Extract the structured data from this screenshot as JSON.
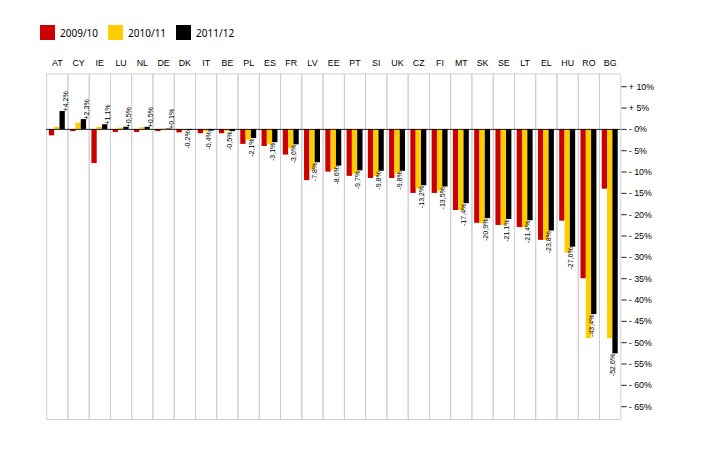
{
  "chart_data": {
    "type": "bar",
    "categories": [
      "AT",
      "CY",
      "IE",
      "LU",
      "NL",
      "DE",
      "DK",
      "IT",
      "BE",
      "PL",
      "ES",
      "FR",
      "LV",
      "EE",
      "PT",
      "SI",
      "UK",
      "CZ",
      "FI",
      "MT",
      "SK",
      "SE",
      "LT",
      "EL",
      "HU",
      "RO",
      "BG"
    ],
    "series": [
      {
        "name": "2009/10",
        "color": "#cc0000",
        "values": [
          -1.5,
          -0.5,
          -8.0,
          -0.7,
          -0.7,
          -0.5,
          -0.8,
          -1.0,
          -1.0,
          -3.5,
          -4.0,
          -6.0,
          -12.0,
          -10.0,
          -11.0,
          -11.5,
          -11.5,
          -15.0,
          -15.0,
          -19.0,
          -22.0,
          -22.5,
          -23.0,
          -26.0,
          -21.5,
          -35.0,
          -14.0
        ]
      },
      {
        "name": "2010/11",
        "color": "#ffcc00",
        "values": [
          0.5,
          1.5,
          0.5,
          0.3,
          0.4,
          0.1,
          -0.3,
          -0.5,
          -0.5,
          -2.5,
          -3.5,
          -4.5,
          -9.5,
          -9.5,
          -10.5,
          -11.0,
          -10.5,
          -14.0,
          -14.5,
          -19.0,
          -22.0,
          -22.5,
          -23.0,
          -26.0,
          -29.0,
          -49.0,
          -49.0
        ]
      },
      {
        "name": "2011/12",
        "color": "#000000",
        "values": [
          4.2,
          2.3,
          1.1,
          0.5,
          0.5,
          0.1,
          -0.2,
          -0.4,
          -0.5,
          -2.1,
          -3.1,
          -3.6,
          -7.8,
          -8.6,
          -9.7,
          -9.8,
          -9.8,
          -13.2,
          -13.5,
          -17.4,
          -20.9,
          -21.1,
          -21.4,
          -23.8,
          -27.6,
          -43.4,
          -52.6
        ],
        "data_labels": true,
        "value_labels": [
          "+4,2%",
          "+2,3%",
          "+1,1%",
          "+0,5%",
          "+0,5%",
          "+0,1%",
          "-0,2%",
          "-0,4%",
          "-0,5%",
          "-2,1%",
          "-3,1%",
          "-3,6%",
          "-7,8%",
          "-8,6%",
          "-9,7%",
          "-9,8%",
          "-9,8%",
          "-13,2%",
          "-13,5%",
          "-17,4%",
          "-20,9%",
          "-21,1%",
          "-21,4%",
          "-23,8%",
          "-27,6%",
          "-43,4%",
          "-52,6%"
        ]
      }
    ],
    "ylim": [
      -68,
      13
    ],
    "yticks": [
      {
        "value": 10,
        "label": "+ 10%"
      },
      {
        "value": 5,
        "label": "+ 5%"
      },
      {
        "value": 0,
        "label": "- 0%"
      },
      {
        "value": -5,
        "label": "- 5%"
      },
      {
        "value": -10,
        "label": "- 10%"
      },
      {
        "value": -15,
        "label": "- 15%"
      },
      {
        "value": -20,
        "label": "- 20%"
      },
      {
        "value": -25,
        "label": "- 25%"
      },
      {
        "value": -30,
        "label": "- 30%"
      },
      {
        "value": -35,
        "label": "- 35%"
      },
      {
        "value": -40,
        "label": "- 40%"
      },
      {
        "value": -45,
        "label": "- 45%"
      },
      {
        "value": -50,
        "label": "- 50%"
      },
      {
        "value": -55,
        "label": "- 55%"
      },
      {
        "value": -60,
        "label": "- 60%"
      },
      {
        "value": -65,
        "label": "- 65%"
      }
    ],
    "grid": true,
    "legend": "top"
  }
}
